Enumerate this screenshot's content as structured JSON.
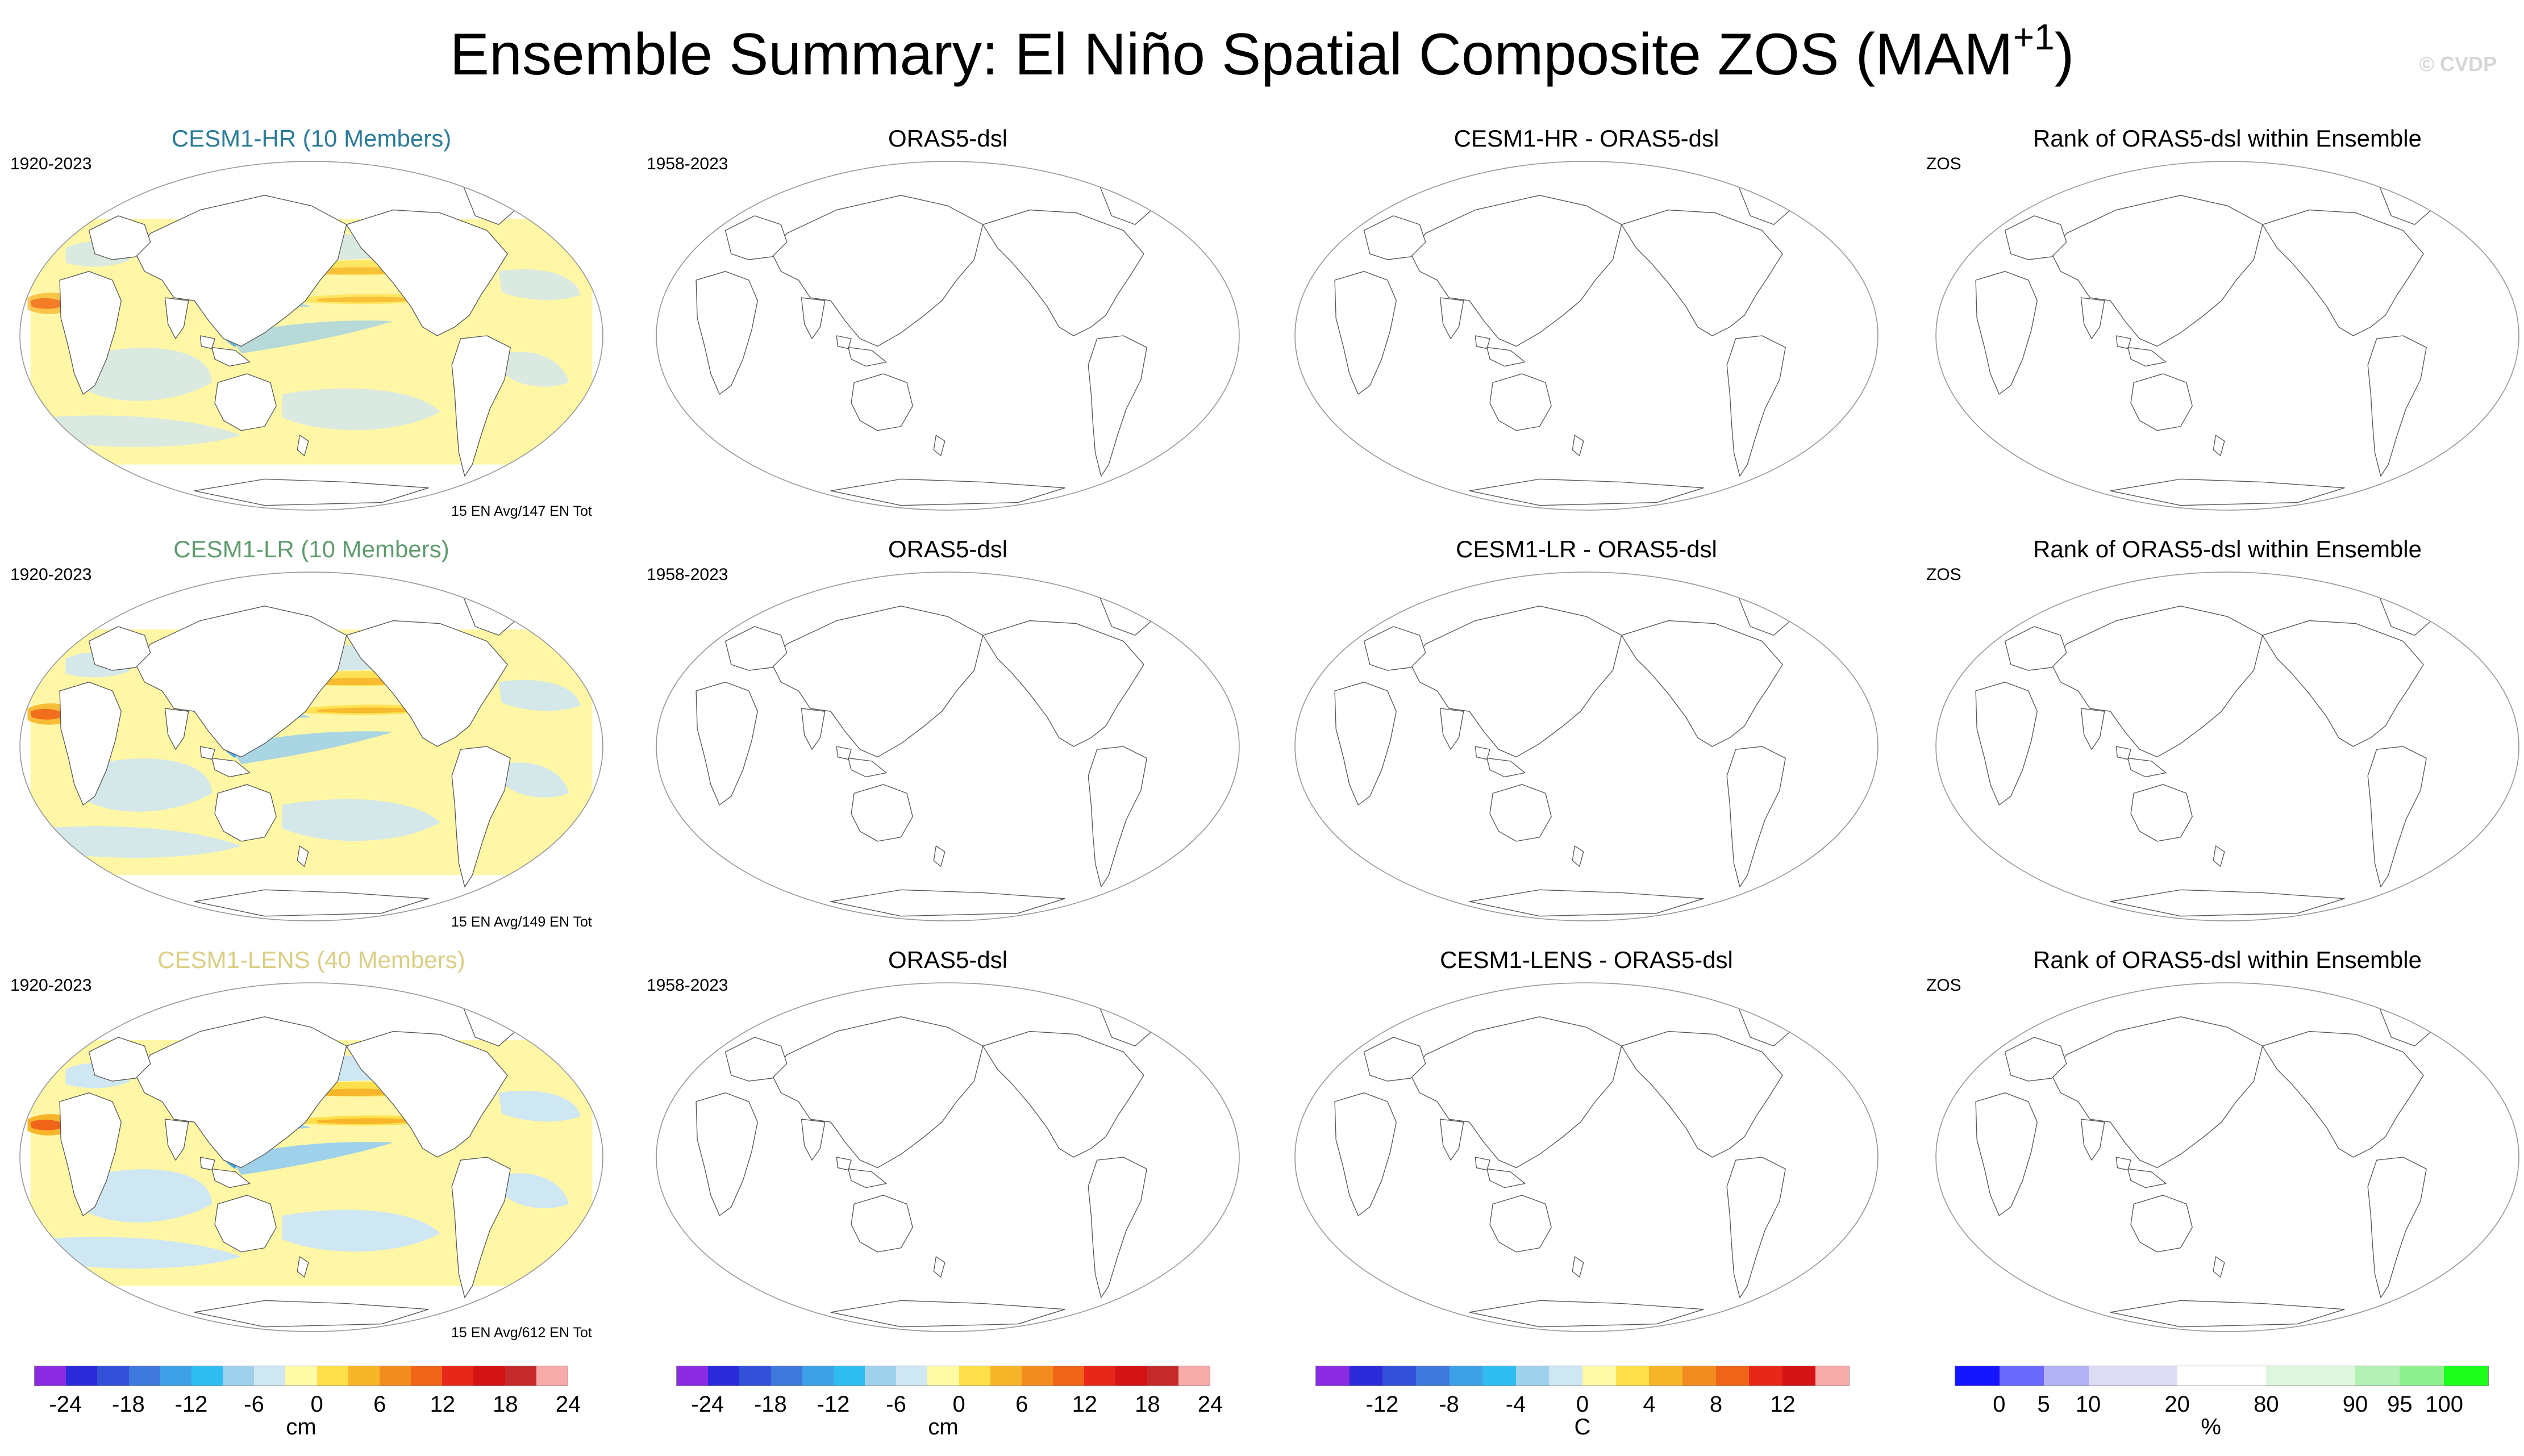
{
  "title": "Ensemble Summary: El Niño Spatial Composite ZOS (MAM",
  "title_sup": "+1",
  "title_close": ")",
  "watermark": "© CVDP",
  "rows": [
    {
      "model_title": "CESM1-HR (10 Members)",
      "model_color": "#2b7b99",
      "model_years": "1920-2023",
      "en_note": "15 EN Avg/147 EN Tot",
      "obs_title": "ORAS5-dsl",
      "obs_years": "1958-2023",
      "diff_title": "CESM1-HR - ORAS5-dsl",
      "rank_title": "Rank of ORAS5-dsl within Ensemble",
      "rank_var": "ZOS",
      "intensity": 0.55
    },
    {
      "model_title": "CESM1-LR (10 Members)",
      "model_color": "#5f9a6e",
      "model_years": "1920-2023",
      "en_note": "15 EN Avg/149 EN Tot",
      "obs_title": "ORAS5-dsl",
      "obs_years": "1958-2023",
      "diff_title": "CESM1-LR - ORAS5-dsl",
      "rank_title": "Rank of ORAS5-dsl within Ensemble",
      "rank_var": "ZOS",
      "intensity": 0.8
    },
    {
      "model_title": "CESM1-LENS (40 Members)",
      "model_color": "#d9cf84",
      "model_years": "1920-2023",
      "en_note": "15 EN Avg/612 EN Tot",
      "obs_title": "ORAS5-dsl",
      "obs_years": "1958-2023",
      "diff_title": "CESM1-LENS - ORAS5-dsl",
      "rank_title": "Rank of ORAS5-dsl within Ensemble",
      "rank_var": "ZOS",
      "intensity": 1.0
    }
  ],
  "colorbars": [
    {
      "unit": "cm",
      "colors": [
        "#8a2be2",
        "#2b2bd9",
        "#3350d8",
        "#3f78dc",
        "#3ea0e6",
        "#2fbcf0",
        "#9fd1ea",
        "#cfe6f3",
        "#fffaa6",
        "#fde04b",
        "#f7b52a",
        "#f28c1e",
        "#f0641a",
        "#e8271a",
        "#d41414",
        "#c42a2a",
        "#f6aaaa"
      ],
      "ticks": [
        "-24",
        "-18",
        "-12",
        "-6",
        "0",
        "6",
        "12",
        "18",
        "24"
      ]
    },
    {
      "unit": "cm",
      "colors": [
        "#8a2be2",
        "#2b2bd9",
        "#3350d8",
        "#3f78dc",
        "#3ea0e6",
        "#2fbcf0",
        "#9fd1ea",
        "#cfe6f3",
        "#fffaa6",
        "#fde04b",
        "#f7b52a",
        "#f28c1e",
        "#f0641a",
        "#e8271a",
        "#d41414",
        "#c42a2a",
        "#f6aaaa"
      ],
      "ticks": [
        "-24",
        "-18",
        "-12",
        "-6",
        "0",
        "6",
        "12",
        "18",
        "24"
      ]
    },
    {
      "unit": "C",
      "colors": [
        "#8a2be2",
        "#2b2bd9",
        "#3350d8",
        "#3f78dc",
        "#3ea0e6",
        "#2fbcf0",
        "#9fd1ea",
        "#cfe6f3",
        "#fffaa6",
        "#fde04b",
        "#f7b52a",
        "#f28c1e",
        "#f0641a",
        "#e8271a",
        "#d41414",
        "#f6aaaa"
      ],
      "ticks": [
        "-12",
        "-8",
        "-4",
        "0",
        "4",
        "8",
        "12"
      ]
    },
    {
      "unit": "%",
      "colors": [
        "#1515ff",
        "#6a6aff",
        "#b2b2f5",
        "#dcdcf5",
        "#dcdcf5",
        "#ffffff",
        "#ffffff",
        "#dff7df",
        "#dff7df",
        "#b5f0b5",
        "#8ff08f",
        "#1cff1c"
      ],
      "ticks": [
        "0",
        "5",
        "10",
        "20",
        "80",
        "90",
        "95",
        "100"
      ]
    }
  ]
}
